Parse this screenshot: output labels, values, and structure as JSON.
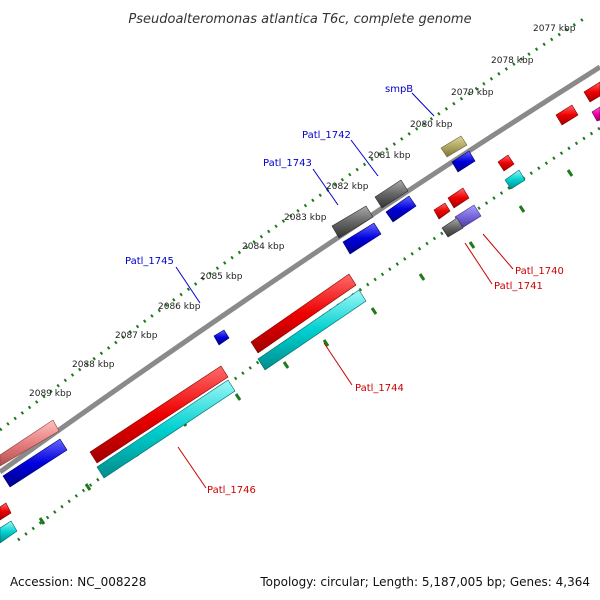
{
  "title": "Pseudoalteromonas atlantica T6c, complete genome",
  "footer": {
    "accession": "Accession: NC_008228",
    "summary": "Topology: circular; Length: 5,187,005 bp; Genes: 4,364"
  },
  "ticks": [
    "2077 kbp",
    "2078 kbp",
    "2079 kbp",
    "2080 kbp",
    "2081 kbp",
    "2082 kbp",
    "2083 kbp",
    "2084 kbp",
    "2085 kbp",
    "2086 kbp",
    "2087 kbp",
    "2088 kbp",
    "2089 kbp"
  ],
  "gene_labels": [
    "smpB",
    "Patl_1742",
    "Patl_1743",
    "Patl_1745",
    "Patl_1740",
    "Patl_1741",
    "Patl_1744",
    "Patl_1746"
  ],
  "colors": {
    "backbone": "#8a8a8a",
    "tick_dots": "#1e7a1e",
    "red": "#ee0000",
    "blue": "#0000dd",
    "cyan": "#00d0d0",
    "gray": "#666666",
    "olive": "#b0a860",
    "purple": "#7766dd",
    "pink": "#e88080",
    "magenta": "#ee00aa"
  }
}
